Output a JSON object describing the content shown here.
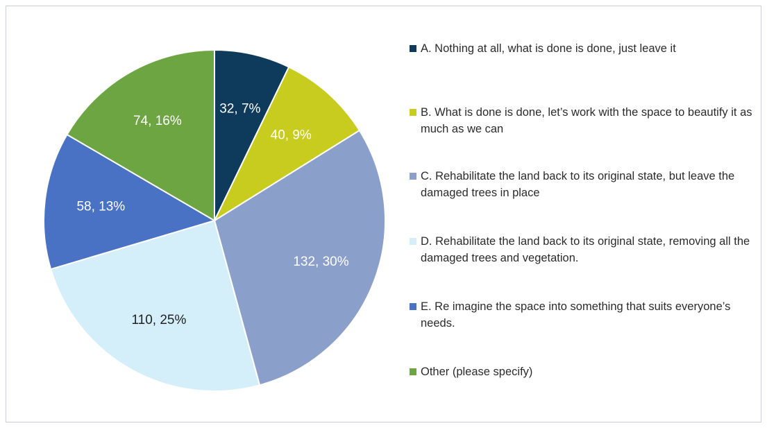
{
  "chart_data": {
    "type": "pie",
    "title": "",
    "slices": [
      {
        "label": "A. Nothing at all, what is done is done, just leave it",
        "value": 32,
        "percent": 7,
        "data_label": "32, 7%",
        "color": "#0e3a5c",
        "label_color": "#ffffff"
      },
      {
        "label": "B. What is done is done, let’s work with the space to beautify it as much as we can",
        "value": 40,
        "percent": 9,
        "data_label": "40, 9%",
        "color": "#c8cc1e",
        "label_color": "#ffffff"
      },
      {
        "label": "C. Rehabilitate the land back to its original state, but leave the damaged trees in place",
        "value": 132,
        "percent": 30,
        "data_label": "132, 30%",
        "color": "#8b9fcb",
        "label_color": "#ffffff"
      },
      {
        "label": "D. Rehabilitate the land back to its original state, removing all the damaged trees and vegetation.",
        "value": 110,
        "percent": 25,
        "data_label": "110, 25%",
        "color": "#d4eefa",
        "label_color": "#222222"
      },
      {
        "label": "E. Re imagine the space into something that suits everyone’s needs.",
        "value": 58,
        "percent": 13,
        "data_label": "58, 13%",
        "color": "#4a72c4",
        "label_color": "#ffffff"
      },
      {
        "label": "Other (please specify)",
        "value": 74,
        "percent": 16,
        "data_label": "74, 16%",
        "color": "#6da543",
        "label_color": "#ffffff"
      }
    ],
    "legend_position": "right",
    "start_angle": "12 o'clock",
    "direction": "clockwise"
  }
}
